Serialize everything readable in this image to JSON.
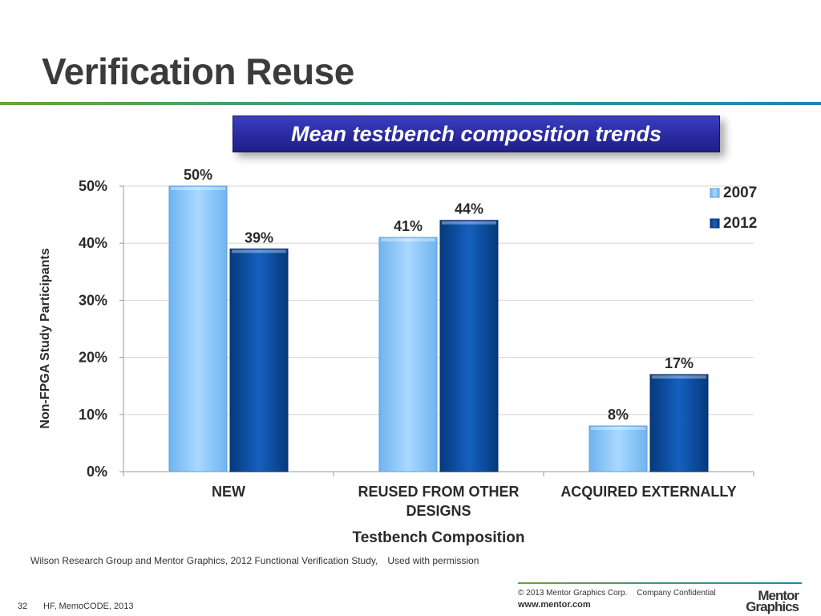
{
  "slide": {
    "title": "Verification Reuse",
    "banner": "Mean testbench composition trends"
  },
  "chart_data": {
    "type": "bar",
    "categories": [
      "NEW",
      "REUSED FROM OTHER DESIGNS",
      "ACQUIRED EXTERNALLY"
    ],
    "category_lines": [
      [
        "NEW"
      ],
      [
        "REUSED FROM OTHER",
        "DESIGNS"
      ],
      [
        "ACQUIRED EXTERNALLY"
      ]
    ],
    "series": [
      {
        "name": "2007",
        "values": [
          50,
          41,
          8
        ],
        "labels": [
          "50%",
          "41%",
          "8%"
        ],
        "color": "#8fcbff"
      },
      {
        "name": "2012",
        "values": [
          39,
          44,
          17
        ],
        "labels": [
          "39%",
          "44%",
          "17%"
        ],
        "color": "#0a4ea6"
      }
    ],
    "xlabel": "Testbench Composition",
    "ylabel": "Non-FPGA Study Participants",
    "ylim": [
      0,
      50
    ],
    "yticks": [
      0,
      10,
      20,
      30,
      40,
      50
    ],
    "ytick_labels": [
      "0%",
      "10%",
      "20%",
      "30%",
      "40%",
      "50%"
    ],
    "grid": true,
    "legend_position": "top-right"
  },
  "footer": {
    "source": "Wilson Research Group and Mentor Graphics, 2012 Functional Verification Study,",
    "permission": "Used with permission",
    "copyright": "© 2013 Mentor Graphics Corp.",
    "confidential": "Company Confidential",
    "website": "www.mentor.com",
    "logo_line1": "Mentor",
    "logo_line2": "Graphics",
    "page_number": "32",
    "event": "HF, MemoCODE, 2013"
  },
  "colors": {
    "accent_green": "#6aa43a",
    "accent_blue": "#1c87b3",
    "banner_blue": "#2a2aa0"
  }
}
